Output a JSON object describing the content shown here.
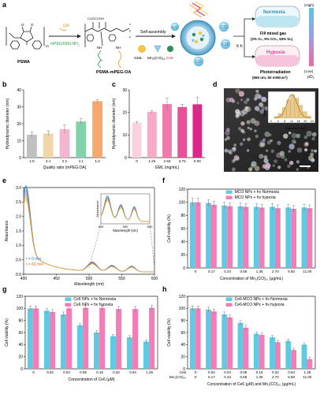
{
  "panel_a": {
    "letter": "a",
    "reagent_oa": "OA",
    "reagent_peg": "mPEG2000-NH",
    "reagent_peg_sub": "2",
    "self_assembly": "Self-assembly",
    "psma": "PSMA",
    "product": "PSMA-mPEG-OA",
    "components": {
      "gml": "GML",
      "mn_a": "Mn",
      "mn_b": "2",
      "mn_c": "(CO)",
      "mn_d": "10",
      "ce6": "Ce6"
    },
    "co": "CO",
    "time": "6 h",
    "normoxia": "Normoxia",
    "fill_gas_1": "Fill mixed gas",
    "fill_gas_2": "(2% O₂, 5% CO₂, 93% N₂)",
    "hypoxia": "Hypoxia",
    "photo_1": "Photoirradiation",
    "photo_2": "(665 nm, 50 mW/cm²)",
    "high": "(High)",
    "low": "(Low)",
    "po2": "pO",
    "po2_sub": "2",
    "chem": {
      "coo": "COO",
      "cooh": "COOH",
      "nh": "NH",
      "nh2": "NH",
      "o": "O",
      "m": "m",
      "n": "n",
      "x": "x",
      "y": "y",
      "z": "z"
    }
  },
  "panel_d": {
    "letter": "d",
    "inset_xlabel": "Diameter (nm)",
    "inset_ylabel": "Percent",
    "inset_ticks": [
      "0",
      "4",
      "8",
      "12",
      "16",
      "20",
      "24"
    ]
  },
  "chart_data": [
    {
      "panel": "b",
      "type": "bar",
      "title": "",
      "xlabel": "Quality ratio (mPEG:OA)",
      "ylabel": "Hydrodynamic diameter (nm)",
      "categories": [
        "1:0",
        "4:1",
        "2:1",
        "1:1",
        "1:2"
      ],
      "values": [
        13.5,
        14.2,
        16.8,
        21.3,
        33.3
      ],
      "errors": [
        1.6,
        1.6,
        2.4,
        1.6,
        0.8
      ],
      "colors": [
        "#c0c0c4",
        "#f0d6a8",
        "#f4b6cf",
        "#82d1a8",
        "#f7a86c"
      ],
      "ylim": [
        0,
        40
      ],
      "yticks": [
        "0",
        "10",
        "20",
        "30",
        "40"
      ]
    },
    {
      "panel": "c",
      "type": "bar",
      "title": "",
      "xlabel": "GML (mg/mL)",
      "ylabel": "Hydrodynamic diameter (nm)",
      "categories": [
        "0",
        "1.25",
        "2.50",
        "3.75",
        "5.00"
      ],
      "values": [
        15.5,
        20.2,
        23.7,
        22.4,
        23.6
      ],
      "errors": [
        0.5,
        0.6,
        2.6,
        1.2,
        3.2
      ],
      "colors": [
        "#fbd0df",
        "#f8a9c6",
        "#f07bab",
        "#e8509a",
        "#e0258a"
      ],
      "ylim": [
        0,
        30
      ],
      "yticks": [
        "0",
        "10",
        "20",
        "30"
      ]
    },
    {
      "panel": "e",
      "type": "line",
      "title": "",
      "xlabel": "Wavelength (nm)",
      "ylabel": "Absorbance",
      "xlim": [
        400,
        600
      ],
      "ylim": [
        0,
        3.0
      ],
      "xticks": [
        "400",
        "450",
        "500",
        "550",
        "600"
      ],
      "yticks": [
        "0.0",
        "0.5",
        "1.0",
        "1.5",
        "2.0",
        "2.5",
        "3.0"
      ],
      "annotations": [
        "t = 0 min",
        "t = 60 min"
      ],
      "inset": {
        "xlabel": "Wavelength (nm)",
        "ylabel": "Absorbance",
        "xticks": [
          "500",
          "550",
          "600"
        ]
      },
      "series_note": "spectra from t = 0 min (blue) to t = 60 min (orange)"
    },
    {
      "panel": "f",
      "type": "bar",
      "title": "",
      "xlabel": "Concentration of Mn₂(CO)₁₀ (μg/mL)",
      "ylabel": "Cell viability (%)",
      "categories": [
        "0",
        "0.17",
        "0.34",
        "0.68",
        "1.36",
        "2.70",
        "5.50",
        "11.00"
      ],
      "ylim": [
        0,
        120
      ],
      "yticks": [
        "0",
        "20",
        "40",
        "60",
        "80",
        "100",
        "120"
      ],
      "series": [
        {
          "name": "MCO NPs + hν  Normoxia",
          "color": "#5ecbe3",
          "values": [
            100,
            99,
            95,
            94,
            93,
            93,
            92,
            92
          ],
          "errors": [
            6,
            5,
            5,
            5,
            5,
            5,
            5,
            5
          ]
        },
        {
          "name": "MCO NPs + hν  hypoxia",
          "color": "#f27eb8",
          "values": [
            100,
            96,
            94,
            93,
            92,
            91,
            90,
            91
          ],
          "errors": [
            6,
            5,
            5,
            5,
            5,
            5,
            5,
            5
          ]
        }
      ]
    },
    {
      "panel": "g",
      "type": "bar",
      "title": "",
      "xlabel": "Concentration of Ce6 (μM)",
      "ylabel": "Cell viability (%)",
      "categories": [
        "0",
        "0.02",
        "0.04",
        "0.08",
        "0.16",
        "0.32",
        "0.64",
        "1.28"
      ],
      "ylim": [
        0,
        120
      ],
      "yticks": [
        "0",
        "20",
        "40",
        "60",
        "80",
        "100",
        "120"
      ],
      "series": [
        {
          "name": "Ce6 NPs + hν  Normoxia",
          "color": "#5ecbe3",
          "values": [
            100,
            96,
            90,
            72,
            60,
            54,
            52,
            45
          ],
          "errors": [
            4,
            4,
            4,
            3,
            3,
            3,
            3,
            3
          ]
        },
        {
          "name": "Ce6 NPs + hν  hypoxia",
          "color": "#f27eb8",
          "values": [
            100,
            94,
            100,
            101,
            101,
            99,
            99,
            101
          ],
          "errors": [
            4,
            4,
            4,
            4,
            4,
            4,
            4,
            4
          ]
        }
      ]
    },
    {
      "panel": "h",
      "type": "bar",
      "title": "",
      "xlabel": "Concentration of Ce6 (μM) and Mn₂(CO)₁₀ (μg/mL)",
      "ylabel": "Cell viability (%)",
      "row_labels": [
        "Ce6",
        "Mn₂(CO)₁₀"
      ],
      "categories": [
        "0",
        "0.02",
        "0.04",
        "0.08",
        "0.16",
        "0.32",
        "0.64",
        "1.28"
      ],
      "categories_2": [
        "0",
        "0.17",
        "0.34",
        "0.68",
        "1.36",
        "2.70",
        "5.50",
        "11.00"
      ],
      "ylim": [
        0,
        120
      ],
      "yticks": [
        "0",
        "20",
        "40",
        "60",
        "80",
        "100",
        "120"
      ],
      "series": [
        {
          "name": "Ce6-MCO NPs + hν  Normoxia",
          "color": "#5ecbe3",
          "values": [
            100,
            98,
            90,
            76,
            58,
            52,
            46,
            40
          ],
          "errors": [
            4,
            4,
            4,
            4,
            3,
            3,
            3,
            3
          ]
        },
        {
          "name": "Ce6-MCO NPs + hν  hypoxia",
          "color": "#f27eb8",
          "values": [
            100,
            95,
            85,
            68,
            56,
            44,
            31,
            16
          ],
          "errors": [
            4,
            4,
            4,
            4,
            3,
            3,
            3,
            3
          ]
        }
      ]
    }
  ]
}
